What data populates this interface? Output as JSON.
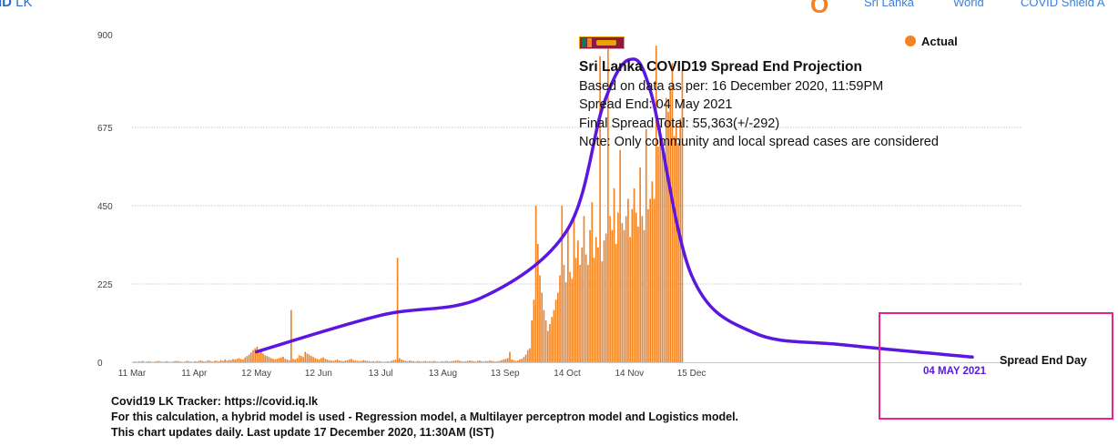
{
  "header": {
    "brand_bold": "ID",
    "brand_rest": " LK",
    "logo_letter": "Q",
    "nav": [
      "Sri Lanka",
      "World",
      "COVID Shield A"
    ]
  },
  "legend": {
    "flag_icon": "sri-lanka-flag-icon",
    "actual_label": "Actual",
    "actual_color": "#f58220"
  },
  "info": {
    "title": "Sri Lanka COVID19 Spread End Projection",
    "line1": "Based on data as per: 16 December 2020, 11:59PM",
    "line2": "Spread End: 04 May 2021",
    "line3": "Final Spread Total: 55,363(+/-292)",
    "line4": "Note: Only community and local spread cases are considered"
  },
  "spread_end": {
    "date_label": "04 MAY 2021",
    "label": "Spread End Day"
  },
  "footer": {
    "line1": "Covid19 LK Tracker: https://covid.iq.lk",
    "line2": "For this calculation, a hybrid model is used - Regression model, a Multilayer perceptron model and Logistics model.",
    "line3": "This chart updates daily. Last update 17 December 2020, 11:30AM (IST)"
  },
  "chart_data": {
    "type": "bar",
    "title": "Sri Lanka COVID19 Spread End Projection",
    "ylim": [
      0,
      900
    ],
    "yticks": [
      0,
      225,
      450,
      675
    ],
    "xticks": [
      "11 Mar",
      "11 Apr",
      "12 May",
      "12 Jun",
      "13 Jul",
      "13 Aug",
      "13 Sep",
      "14 Oct",
      "14 Nov",
      "15 Dec"
    ],
    "grid": true,
    "legend_position": "top-right",
    "series": [
      {
        "name": "Actual",
        "color": "#f58220",
        "start_date": "2020-03-11",
        "values": [
          1,
          2,
          1,
          3,
          2,
          4,
          1,
          2,
          3,
          2,
          1,
          2,
          3,
          4,
          2,
          1,
          2,
          3,
          2,
          1,
          2,
          3,
          4,
          3,
          2,
          1,
          2,
          4,
          3,
          2,
          1,
          3,
          2,
          4,
          5,
          3,
          2,
          4,
          6,
          3,
          2,
          5,
          4,
          3,
          6,
          4,
          8,
          5,
          7,
          6,
          9,
          8,
          10,
          12,
          9,
          8,
          14,
          18,
          22,
          28,
          35,
          40,
          45,
          32,
          30,
          25,
          20,
          18,
          15,
          12,
          10,
          8,
          10,
          12,
          14,
          16,
          10,
          8,
          6,
          150,
          10,
          8,
          12,
          20,
          18,
          15,
          30,
          25,
          22,
          18,
          15,
          12,
          10,
          8,
          12,
          14,
          10,
          8,
          6,
          5,
          4,
          6,
          8,
          5,
          4,
          3,
          5,
          6,
          8,
          10,
          6,
          5,
          4,
          3,
          4,
          6,
          5,
          4,
          3,
          2,
          3,
          2,
          4,
          3,
          2,
          1,
          2,
          3,
          2,
          4,
          6,
          8,
          300,
          12,
          8,
          6,
          4,
          3,
          5,
          4,
          3,
          2,
          4,
          3,
          2,
          3,
          4,
          2,
          3,
          2,
          4,
          3,
          2,
          1,
          3,
          2,
          4,
          3,
          2,
          3,
          4,
          5,
          6,
          4,
          3,
          2,
          3,
          4,
          5,
          4,
          3,
          2,
          4,
          5,
          3,
          2,
          4,
          3,
          5,
          4,
          3,
          2,
          3,
          4,
          6,
          8,
          10,
          12,
          30,
          8,
          6,
          4,
          5,
          8,
          10,
          15,
          22,
          35,
          40,
          120,
          180,
          450,
          340,
          250,
          200,
          150,
          120,
          90,
          110,
          130,
          150,
          180,
          200,
          250,
          450,
          280,
          230,
          380,
          260,
          240,
          420,
          300,
          350,
          280,
          330,
          420,
          310,
          280,
          380,
          460,
          300,
          360,
          330,
          880,
          290,
          350,
          370,
          900,
          420,
          380,
          500,
          340,
          430,
          610,
          400,
          380,
          420,
          470,
          360,
          440,
          500,
          430,
          390,
          560,
          420,
          380,
          670,
          440,
          470,
          520,
          470,
          910,
          620,
          680,
          640,
          580,
          760,
          720,
          790,
          860,
          650,
          690,
          630,
          700,
          840
        ]
      },
      {
        "name": "Projection",
        "color": "#5b16e0",
        "x": [
          "2020-05-12",
          "2020-07-13",
          "2020-09-01",
          "2020-10-14",
          "2020-11-01",
          "2020-11-14",
          "2020-11-25",
          "2020-12-15",
          "2021-01-15",
          "2021-03-01",
          "2021-05-04"
        ],
        "values": [
          30,
          135,
          185,
          380,
          740,
          870,
          770,
          250,
          85,
          50,
          15
        ]
      }
    ]
  }
}
